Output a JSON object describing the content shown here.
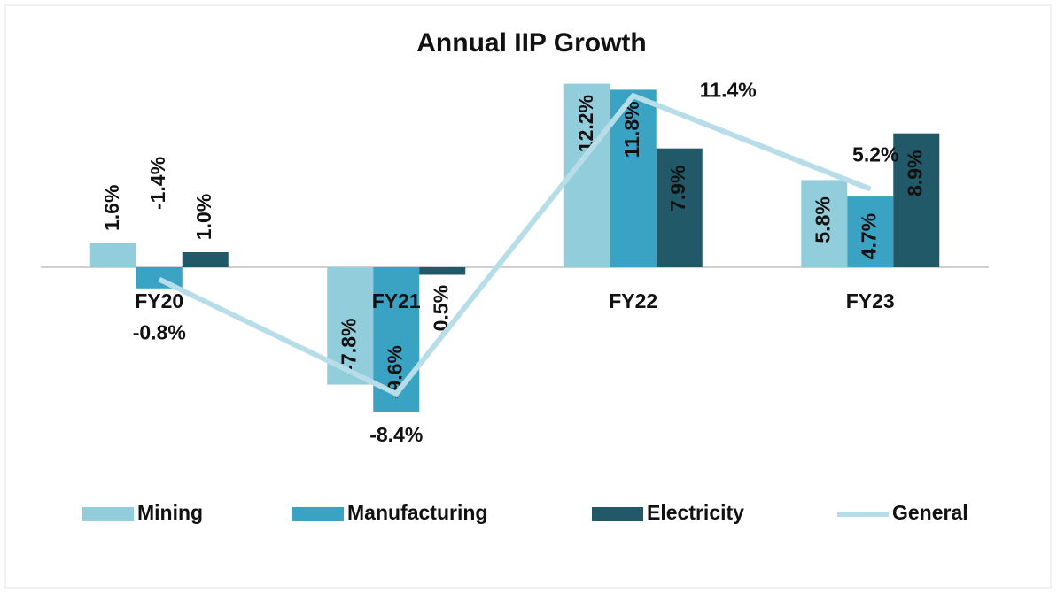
{
  "chart_data": {
    "type": "bar",
    "title": "Annual IIP Growth",
    "categories": [
      "FY20",
      "FY21",
      "FY22",
      "FY23"
    ],
    "ylim": [
      -10,
      13
    ],
    "series": [
      {
        "name": "Mining",
        "color": "#92cddc",
        "values": [
          1.6,
          -7.8,
          12.2,
          5.8
        ],
        "value_labels": [
          "1.6%",
          "-7.8%",
          "12.2%",
          "5.8%"
        ]
      },
      {
        "name": "Manufacturing",
        "color": "#3aa2c2",
        "values": [
          -1.4,
          -9.6,
          11.8,
          4.7
        ],
        "value_labels": [
          "-1.4%",
          "-9.6%",
          "11.8%",
          "4.7%"
        ]
      },
      {
        "name": "Electricity",
        "color": "#215968",
        "values": [
          1.0,
          -0.5,
          7.9,
          8.9
        ],
        "value_labels": [
          "1.0%",
          "-0.5%",
          "7.9%",
          "8.9%"
        ]
      },
      {
        "name": "General",
        "type": "line",
        "color": "#b7dde8",
        "values": [
          -0.8,
          -8.4,
          11.4,
          5.2
        ],
        "value_labels": [
          "-0.8%",
          "-8.4%",
          "11.4%",
          "5.2%"
        ]
      }
    ],
    "legend": "bottom"
  }
}
